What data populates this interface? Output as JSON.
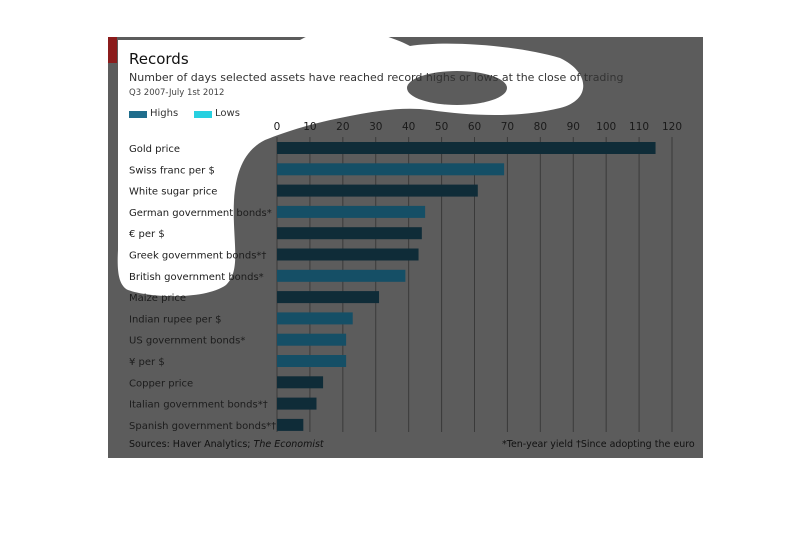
{
  "header": {
    "title": "Records",
    "subtitle": "Number of days selected assets have reached record highs or lows at the close of trading",
    "period": "Q3 2007-July 1st 2012"
  },
  "legend": [
    {
      "label": "Highs",
      "color": "#1f6d8c"
    },
    {
      "label": "Lows",
      "color": "#27d0e0"
    }
  ],
  "footer": {
    "sources_prefix": "Sources: Haver Analytics; ",
    "sources_italic": "The Economist",
    "note": "*Ten-year yield   †Since adopting the euro"
  },
  "colors": {
    "panel": "#5c5c5c",
    "accent": "#8b1c1c",
    "bar_dark": "#0f2c38",
    "bar_light": "#154f66",
    "gridline": "#3a3a3a",
    "spotlight": "#ffffff"
  },
  "chart_data": {
    "type": "bar",
    "orientation": "horizontal",
    "title": "Records",
    "subtitle": "Number of days selected assets have reached record highs or lows at the close of trading",
    "xlim": [
      0,
      120
    ],
    "xticks": [
      0,
      10,
      20,
      30,
      40,
      50,
      60,
      70,
      80,
      90,
      100,
      110,
      120
    ],
    "grid": true,
    "legend_position": "top-left",
    "series": [
      {
        "name": "Highs"
      },
      {
        "name": "Lows"
      }
    ],
    "categories": [
      "Gold price",
      "Swiss franc per $",
      "White sugar price",
      "German government bonds*",
      "€ per $",
      "Greek government bonds*†",
      "British government bonds*",
      "Maize price",
      "Indian rupee per $",
      "US government bonds*",
      "¥ per $",
      "Copper price",
      "Italian government bonds*†",
      "Spanish government bonds*†"
    ],
    "values": [
      115,
      69,
      61,
      45,
      44,
      43,
      39,
      31,
      23,
      21,
      21,
      14,
      12,
      8
    ],
    "bar_shade": [
      "dark",
      "light",
      "dark",
      "light",
      "dark",
      "dark",
      "light",
      "dark",
      "light",
      "light",
      "light",
      "dark",
      "dark",
      "dark"
    ]
  }
}
